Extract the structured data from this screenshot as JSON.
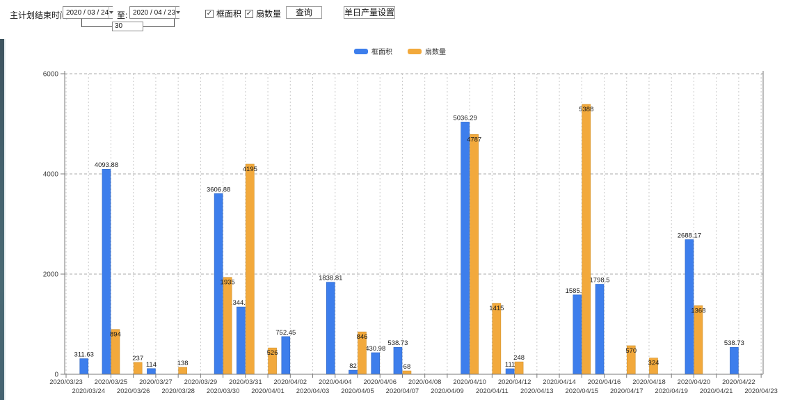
{
  "toolbar": {
    "main_label": "主计划结束时间:",
    "start_date": "2020 / 03 / 24",
    "to_label": "至:",
    "end_date": "2020 / 04 / 23",
    "days_value": "30",
    "checkbox_area_label": "框面积",
    "checkbox_fans_label": "扇数量",
    "checkbox_checked_glyph": "✓",
    "query_button": "查询",
    "daily_output_button": "单日产量设置"
  },
  "colors": {
    "series_blue": "#3d7eec",
    "series_blue_edge": "#2f66c4",
    "series_orange": "#f2a93c",
    "series_orange_edge": "#cf8f28",
    "grid_h": "#a8a8a8",
    "grid_v": "#c9c9c9",
    "axis": "#7a7a7a",
    "label_text": "#1a1a1a",
    "tick_text": "#3c3c3c"
  },
  "chart_data": {
    "type": "bar",
    "title": "",
    "xlabel": "",
    "ylabel": "",
    "ylim": [
      0,
      6000
    ],
    "yticks": [
      0,
      2000,
      4000,
      6000
    ],
    "grid": true,
    "legend_position": "top",
    "x": [
      "2020/03/23",
      "2020/03/24",
      "2020/03/25",
      "2020/03/26",
      "2020/03/27",
      "2020/03/28",
      "2020/03/29",
      "2020/03/30",
      "2020/03/31",
      "2020/04/01",
      "2020/04/02",
      "2020/04/03",
      "2020/04/04",
      "2020/04/05",
      "2020/04/06",
      "2020/04/07",
      "2020/04/08",
      "2020/04/09",
      "2020/04/10",
      "2020/04/11",
      "2020/04/12",
      "2020/04/13",
      "2020/04/14",
      "2020/04/15",
      "2020/04/16",
      "2020/04/17",
      "2020/04/18",
      "2020/04/19",
      "2020/04/20",
      "2020/04/21",
      "2020/04/22",
      "2020/04/23"
    ],
    "series": [
      {
        "name": "框面积",
        "color": "#3d7eec",
        "values": [
          null,
          311.63,
          4093.88,
          null,
          114,
          null,
          null,
          3606.88,
          1344.95,
          null,
          752.45,
          null,
          1838.81,
          82,
          430.98,
          538.73,
          null,
          null,
          5036.29,
          null,
          111,
          null,
          null,
          1585.96,
          1798.5,
          null,
          null,
          null,
          2688.17,
          null,
          538.73,
          null
        ],
        "labels": [
          null,
          "311.63",
          "4093.88",
          null,
          "114",
          null,
          null,
          "3606.88",
          "1344.95",
          null,
          "752.45",
          null,
          "1838.81",
          "82",
          "430.98",
          "538.73",
          null,
          null,
          "5036.29",
          null,
          "111",
          null,
          null,
          "1585.96",
          "1798.5",
          null,
          null,
          null,
          "2688.17",
          null,
          "538.73",
          null
        ]
      },
      {
        "name": "扇数量",
        "color": "#f2a93c",
        "values": [
          null,
          null,
          894,
          237,
          null,
          138,
          null,
          1935,
          4195,
          526,
          null,
          null,
          null,
          846,
          null,
          68,
          null,
          null,
          4787,
          1415,
          248,
          null,
          null,
          5388,
          null,
          570,
          324,
          null,
          1368,
          null,
          null,
          null
        ],
        "labels": [
          null,
          null,
          "894",
          "237",
          null,
          "138",
          null,
          "1935",
          "4195",
          "526",
          null,
          null,
          null,
          "846",
          null,
          "68",
          null,
          null,
          "4787",
          "1415",
          "248",
          null,
          null,
          "5388",
          null,
          "570",
          "324",
          null,
          "1368",
          null,
          null,
          null
        ]
      }
    ]
  }
}
